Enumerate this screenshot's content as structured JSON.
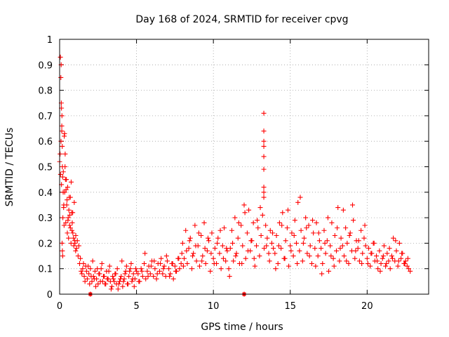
{
  "chart_data": {
    "type": "scatter",
    "title": "Day 168 of 2024, SRMTID for receiver cpvg",
    "xlabel": "GPS time / hours",
    "ylabel": "SRMTID / TECUs",
    "xlim": [
      0,
      24
    ],
    "ylim": [
      0,
      1
    ],
    "xticks": [
      0,
      5,
      10,
      15,
      20
    ],
    "yticks": [
      0,
      0.1,
      0.2,
      0.3,
      0.4,
      0.5,
      0.6,
      0.7,
      0.8,
      0.9,
      1
    ],
    "grid": true,
    "marker_color": "#ff0000",
    "marker": "plus",
    "series": [
      {
        "name": "SRMTID",
        "x": [
          0.0,
          0.03,
          0.06,
          0.09,
          0.12,
          0.15,
          0.18,
          0.21,
          0.24,
          0.27,
          0.3,
          0.33,
          0.36,
          0.4,
          0.44,
          0.48,
          0.52,
          0.56,
          0.6,
          0.65,
          0.7,
          0.75,
          0.8,
          0.85,
          0.9,
          0.95,
          1.0,
          1.05,
          1.1,
          1.15,
          1.2,
          1.25,
          0.05,
          0.08,
          0.11,
          0.14,
          0.17,
          0.2,
          0.23,
          0.26,
          0.29,
          0.32,
          0.35,
          0.38,
          0.42,
          0.46,
          0.5,
          0.54,
          0.58,
          0.62,
          0.66,
          0.7,
          0.74,
          0.78,
          0.82,
          0.86,
          0.92,
          0.98,
          1.04,
          0.1,
          0.12,
          0.14,
          0.16,
          0.18,
          0.2,
          1.3,
          1.4,
          1.5,
          1.6,
          1.7,
          1.8,
          1.9,
          2.0,
          2.1,
          2.2,
          2.3,
          2.4,
          2.5,
          2.6,
          2.7,
          2.8,
          2.9,
          3.0,
          3.1,
          3.2,
          3.3,
          3.4,
          3.5,
          3.6,
          3.7,
          3.8,
          3.9,
          4.0,
          4.1,
          4.2,
          4.3,
          4.4,
          4.5,
          4.6,
          4.7,
          4.8,
          4.9,
          5.0,
          1.35,
          1.45,
          1.55,
          1.65,
          1.75,
          1.85,
          1.95,
          2.05,
          2.15,
          2.25,
          2.35,
          2.45,
          2.55,
          2.65,
          2.75,
          2.85,
          2.95,
          3.05,
          3.15,
          3.25,
          3.35,
          3.45,
          3.55,
          3.65,
          3.75,
          3.85,
          3.95,
          4.05,
          4.15,
          4.25,
          4.35,
          4.45,
          4.55,
          4.65,
          4.75,
          4.85,
          4.95,
          5.1,
          5.2,
          5.3,
          5.4,
          5.5,
          5.6,
          5.7,
          5.8,
          5.9,
          6.0,
          6.1,
          6.2,
          6.3,
          6.4,
          6.5,
          6.6,
          6.7,
          6.8,
          6.9,
          7.0,
          7.1,
          7.2,
          7.3,
          7.4,
          7.5,
          7.6,
          7.7,
          7.8,
          7.9,
          5.15,
          5.35,
          5.55,
          5.75,
          5.95,
          6.15,
          6.35,
          6.55,
          6.75,
          6.95,
          7.15,
          7.35,
          7.55,
          7.75,
          7.95,
          8.0,
          8.1,
          8.2,
          8.3,
          8.4,
          8.5,
          8.6,
          8.7,
          8.8,
          8.9,
          9.0,
          9.1,
          9.2,
          9.3,
          9.4,
          9.5,
          9.6,
          9.7,
          9.8,
          9.9,
          10.0,
          10.1,
          10.2,
          10.3,
          10.4,
          10.5,
          10.6,
          10.7,
          10.8,
          10.9,
          8.05,
          8.25,
          8.45,
          8.65,
          8.85,
          9.05,
          9.25,
          9.45,
          9.65,
          9.85,
          10.05,
          10.25,
          10.45,
          10.65,
          10.85,
          11.0,
          11.1,
          11.2,
          11.3,
          11.4,
          11.5,
          11.6,
          11.7,
          11.8,
          11.9,
          12.0,
          12.1,
          12.2,
          12.3,
          12.4,
          12.5,
          12.6,
          12.7,
          12.8,
          12.9,
          13.0,
          13.1,
          13.2,
          13.3,
          13.4,
          13.5,
          13.6,
          13.7,
          13.8,
          13.9,
          11.05,
          11.25,
          11.45,
          11.65,
          11.85,
          12.05,
          12.25,
          12.45,
          12.65,
          12.85,
          13.05,
          13.45,
          13.65,
          13.85,
          13.28,
          13.28,
          13.28,
          13.28,
          13.28,
          13.28,
          13.28,
          13.28,
          13.28,
          14.0,
          14.1,
          14.2,
          14.3,
          14.4,
          14.5,
          14.6,
          14.7,
          14.8,
          14.9,
          15.0,
          15.1,
          15.2,
          15.3,
          15.4,
          15.5,
          15.6,
          15.7,
          15.8,
          15.9,
          16.0,
          16.1,
          16.2,
          16.3,
          16.4,
          16.5,
          16.6,
          16.7,
          16.8,
          16.9,
          14.05,
          14.25,
          14.45,
          14.65,
          14.85,
          15.05,
          15.25,
          15.45,
          15.65,
          15.85,
          16.05,
          16.25,
          16.45,
          16.65,
          16.85,
          17.0,
          17.1,
          17.2,
          17.3,
          17.4,
          17.5,
          17.6,
          17.7,
          17.8,
          17.9,
          18.0,
          18.1,
          18.2,
          18.3,
          18.4,
          18.5,
          18.6,
          18.7,
          18.8,
          18.9,
          19.0,
          19.1,
          19.2,
          19.3,
          19.4,
          19.5,
          19.6,
          19.7,
          19.8,
          19.9,
          17.05,
          17.25,
          17.45,
          17.65,
          17.85,
          18.05,
          18.25,
          18.45,
          18.65,
          18.85,
          19.05,
          19.25,
          19.45,
          19.65,
          19.85,
          20.0,
          20.1,
          20.2,
          20.3,
          20.4,
          20.5,
          20.6,
          20.7,
          20.8,
          20.9,
          21.0,
          21.1,
          21.2,
          21.3,
          21.4,
          21.5,
          21.6,
          21.7,
          21.8,
          21.9,
          22.0,
          22.1,
          22.2,
          22.3,
          22.4,
          22.5,
          22.6,
          22.7,
          22.8,
          20.05,
          20.25,
          20.45,
          20.65,
          20.85,
          21.05,
          21.25,
          21.45,
          21.65,
          21.85,
          22.05,
          22.25,
          22.45,
          22.65,
          2.0,
          2.0,
          12.0,
          12.0
        ],
        "y": [
          0.52,
          0.55,
          0.47,
          0.6,
          0.43,
          0.7,
          0.5,
          0.3,
          0.48,
          0.35,
          0.62,
          0.4,
          0.55,
          0.28,
          0.45,
          0.37,
          0.42,
          0.3,
          0.33,
          0.27,
          0.38,
          0.44,
          0.25,
          0.32,
          0.22,
          0.36,
          0.2,
          0.23,
          0.18,
          0.21,
          0.15,
          0.19,
          0.93,
          0.85,
          0.75,
          0.66,
          0.58,
          0.46,
          0.4,
          0.34,
          0.27,
          0.63,
          0.5,
          0.45,
          0.41,
          0.35,
          0.24,
          0.29,
          0.22,
          0.38,
          0.31,
          0.26,
          0.2,
          0.32,
          0.28,
          0.24,
          0.19,
          0.21,
          0.17,
          0.9,
          0.73,
          0.64,
          0.2,
          0.17,
          0.15,
          0.12,
          0.09,
          0.1,
          0.07,
          0.11,
          0.06,
          0.08,
          0.1,
          0.05,
          0.07,
          0.09,
          0.06,
          0.04,
          0.08,
          0.1,
          0.05,
          0.07,
          0.04,
          0.06,
          0.09,
          0.05,
          0.03,
          0.06,
          0.08,
          0.04,
          0.02,
          0.05,
          0.07,
          0.03,
          0.06,
          0.09,
          0.04,
          0.07,
          0.1,
          0.05,
          0.08,
          0.06,
          0.09,
          0.14,
          0.08,
          0.12,
          0.05,
          0.09,
          0.11,
          0.04,
          0.07,
          0.13,
          0.06,
          0.03,
          0.1,
          0.08,
          0.05,
          0.12,
          0.07,
          0.04,
          0.09,
          0.06,
          0.11,
          0.02,
          0.07,
          0.05,
          0.08,
          0.1,
          0.04,
          0.06,
          0.13,
          0.05,
          0.08,
          0.11,
          0.04,
          0.09,
          0.12,
          0.06,
          0.03,
          0.1,
          0.08,
          0.05,
          0.1,
          0.07,
          0.12,
          0.06,
          0.09,
          0.11,
          0.08,
          0.13,
          0.07,
          0.1,
          0.06,
          0.12,
          0.09,
          0.14,
          0.08,
          0.11,
          0.07,
          0.13,
          0.1,
          0.08,
          0.12,
          0.06,
          0.11,
          0.09,
          0.14,
          0.1,
          0.12,
          0.05,
          0.09,
          0.16,
          0.07,
          0.11,
          0.13,
          0.08,
          0.12,
          0.1,
          0.15,
          0.07,
          0.12,
          0.09,
          0.14,
          0.16,
          0.2,
          0.14,
          0.25,
          0.12,
          0.18,
          0.22,
          0.1,
          0.16,
          0.27,
          0.13,
          0.19,
          0.11,
          0.23,
          0.15,
          0.28,
          0.12,
          0.17,
          0.21,
          0.09,
          0.24,
          0.14,
          0.18,
          0.12,
          0.22,
          0.16,
          0.1,
          0.19,
          0.26,
          0.13,
          0.17,
          0.11,
          0.17,
          0.21,
          0.15,
          0.19,
          0.24,
          0.13,
          0.18,
          0.22,
          0.16,
          0.12,
          0.2,
          0.25,
          0.14,
          0.18,
          0.1,
          0.18,
          0.25,
          0.13,
          0.3,
          0.16,
          0.22,
          0.12,
          0.27,
          0.19,
          0.35,
          0.14,
          0.24,
          0.33,
          0.17,
          0.21,
          0.28,
          0.11,
          0.19,
          0.26,
          0.15,
          0.23,
          0.31,
          0.18,
          0.27,
          0.22,
          0.16,
          0.25,
          0.2,
          0.18,
          0.07,
          0.2,
          0.15,
          0.28,
          0.12,
          0.32,
          0.17,
          0.21,
          0.14,
          0.29,
          0.34,
          0.19,
          0.13,
          0.24,
          0.38,
          0.42,
          0.49,
          0.54,
          0.58,
          0.6,
          0.64,
          0.71,
          0.4,
          0.16,
          0.23,
          0.12,
          0.28,
          0.18,
          0.32,
          0.14,
          0.21,
          0.26,
          0.11,
          0.19,
          0.24,
          0.15,
          0.29,
          0.2,
          0.36,
          0.17,
          0.25,
          0.13,
          0.22,
          0.3,
          0.16,
          0.27,
          0.19,
          0.12,
          0.24,
          0.18,
          0.28,
          0.15,
          0.21,
          0.1,
          0.19,
          0.27,
          0.14,
          0.33,
          0.17,
          0.23,
          0.12,
          0.38,
          0.2,
          0.26,
          0.15,
          0.29,
          0.11,
          0.24,
          0.18,
          0.12,
          0.25,
          0.16,
          0.21,
          0.09,
          0.19,
          0.28,
          0.14,
          0.23,
          0.17,
          0.34,
          0.13,
          0.22,
          0.19,
          0.15,
          0.26,
          0.2,
          0.12,
          0.24,
          0.17,
          0.29,
          0.14,
          0.21,
          0.18,
          0.13,
          0.25,
          0.16,
          0.22,
          0.19,
          0.08,
          0.2,
          0.3,
          0.15,
          0.11,
          0.26,
          0.18,
          0.33,
          0.13,
          0.23,
          0.35,
          0.17,
          0.21,
          0.12,
          0.27,
          0.14,
          0.18,
          0.11,
          0.16,
          0.2,
          0.13,
          0.15,
          0.1,
          0.17,
          0.12,
          0.14,
          0.19,
          0.11,
          0.16,
          0.13,
          0.1,
          0.15,
          0.22,
          0.13,
          0.17,
          0.11,
          0.2,
          0.14,
          0.16,
          0.12,
          0.13,
          0.11,
          0.1,
          0.09,
          0.12,
          0.16,
          0.2,
          0.13,
          0.09,
          0.15,
          0.12,
          0.18,
          0.14,
          0.21,
          0.13,
          0.16,
          0.12,
          0.14,
          0.0,
          0.0,
          0.0,
          0.0
        ]
      }
    ],
    "axis_markers": [
      2.0,
      12.0
    ]
  }
}
